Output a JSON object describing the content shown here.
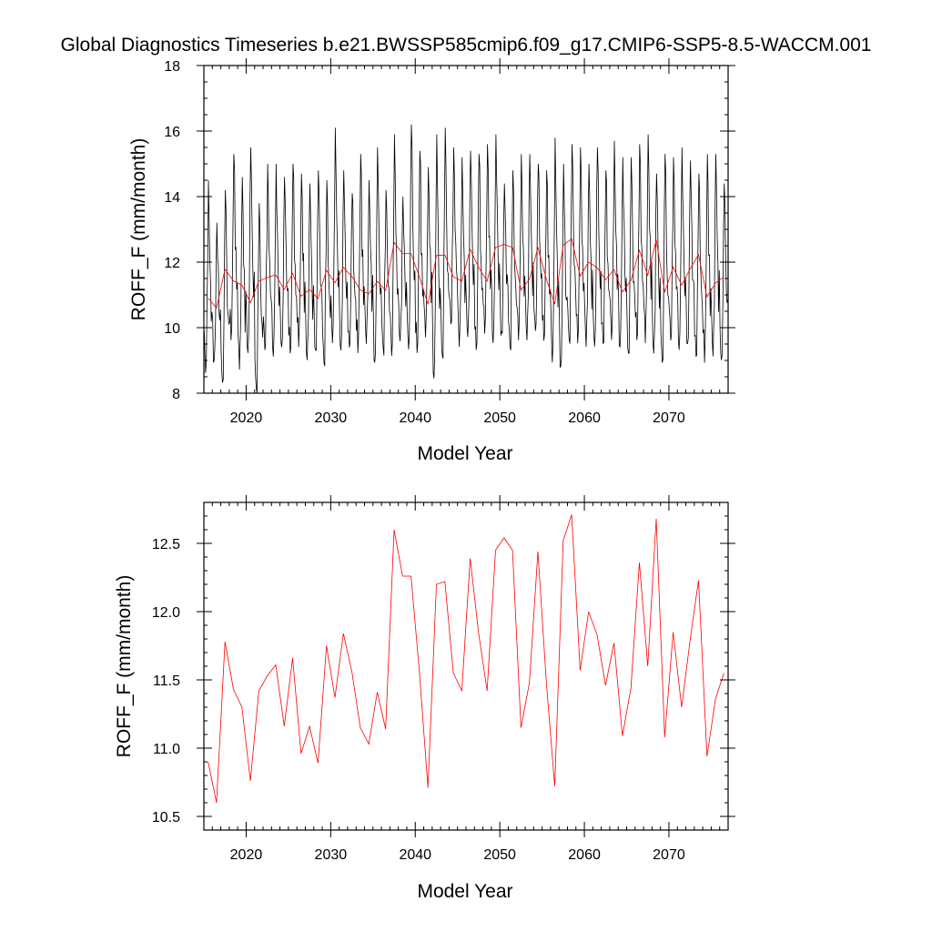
{
  "title": "Global Diagnostics Timeseries b.e21.BWSSP585cmip6.f09_g17.CMIP6-SSP5-8.5-WACCM.001",
  "colors": {
    "monthly": "#000000",
    "annual": "#ff0000",
    "frame": "#000000"
  },
  "chart_data": [
    {
      "type": "line",
      "xlabel": "Model Year",
      "ylabel": "ROFF_F (mm/month)",
      "xlim": [
        2015,
        2077
      ],
      "ylim": [
        8,
        18
      ],
      "x_ticks": [
        2020,
        2030,
        2040,
        2050,
        2060,
        2070
      ],
      "x_tick_labels": [
        "2020",
        "2030",
        "2040",
        "2050",
        "2060",
        "2070"
      ],
      "y_ticks": [
        8,
        10,
        12,
        14,
        16,
        18
      ],
      "y_tick_labels": [
        "8",
        "10",
        "12",
        "14",
        "16",
        "18"
      ],
      "series": [
        {
          "style": "monthly",
          "note_generated_from": "annual",
          "peaks": [
            14.5,
            13.2,
            14.2,
            15.3,
            14.6,
            15.5,
            13.8,
            15.0,
            15.0,
            14.6,
            15.0,
            14.7,
            14.4,
            14.8,
            14.5,
            16.1,
            14.8,
            14.1,
            15.3,
            14.5,
            15.5,
            14.2,
            15.9,
            14.0,
            16.2,
            15.4,
            14.9,
            15.9,
            16.1,
            15.5,
            15.2,
            15.4,
            15.3,
            15.6,
            15.9,
            14.4,
            14.8,
            15.3,
            15.3,
            15.0,
            14.8,
            15.8,
            15.0,
            15.6,
            15.5,
            15.0,
            15.5,
            14.8,
            15.7,
            15.2,
            15.2,
            15.6,
            15.9,
            14.7,
            15.3,
            15.2,
            15.5,
            15.1,
            14.7,
            15.3,
            15.3,
            14.4
          ],
          "troughs": [
            8.5,
            8.9,
            8.2,
            9.5,
            8.6,
            9.1,
            8.0,
            9.2,
            9.0,
            9.3,
            9.1,
            9.3,
            8.9,
            9.2,
            8.8,
            9.4,
            9.2,
            9.3,
            9.1,
            9.4,
            8.8,
            9.3,
            9.0,
            9.5,
            9.2,
            9.1,
            9.6,
            8.3,
            9.0,
            10.0,
            9.3,
            9.6,
            9.2,
            9.7,
            9.4,
            9.8,
            9.3,
            9.5,
            9.5,
            9.8,
            9.5,
            8.8,
            8.7,
            9.5,
            9.4,
            9.3,
            9.3,
            9.4,
            9.5,
            9.3,
            9.1,
            9.5,
            9.4,
            9.1,
            8.8,
            9.5,
            9.2,
            9.4,
            9.0,
            8.8,
            9.0,
            8.9
          ]
        },
        {
          "style": "annual",
          "x": [
            2015.5,
            2016.5,
            2017.5,
            2018.5,
            2019.5,
            2020.5,
            2021.5,
            2022.5,
            2023.5,
            2024.5,
            2025.5,
            2026.5,
            2027.5,
            2028.5,
            2029.5,
            2030.5,
            2031.5,
            2032.5,
            2033.5,
            2034.5,
            2035.5,
            2036.5,
            2037.5,
            2038.5,
            2039.5,
            2040.5,
            2041.5,
            2042.5,
            2043.5,
            2044.5,
            2045.5,
            2046.5,
            2047.5,
            2048.5,
            2049.5,
            2050.5,
            2051.5,
            2052.5,
            2053.5,
            2054.5,
            2055.5,
            2056.5,
            2057.5,
            2058.5,
            2059.5,
            2060.5,
            2061.5,
            2062.5,
            2063.5,
            2064.5,
            2065.5,
            2066.5,
            2067.5,
            2068.5,
            2069.5,
            2070.5,
            2071.5,
            2072.5,
            2073.5,
            2074.5,
            2075.5,
            2076.5
          ],
          "values": [
            10.9,
            10.6,
            11.78,
            11.43,
            11.3,
            10.76,
            11.42,
            11.53,
            11.61,
            11.16,
            11.66,
            10.96,
            11.16,
            10.89,
            11.75,
            11.37,
            11.84,
            11.56,
            11.15,
            11.03,
            11.41,
            11.14,
            12.6,
            12.26,
            12.26,
            11.55,
            10.71,
            12.2,
            12.22,
            11.55,
            11.42,
            12.39,
            11.84,
            11.42,
            12.45,
            12.54,
            12.45,
            11.15,
            11.48,
            12.44,
            11.48,
            10.72,
            12.52,
            12.71,
            11.57,
            12.0,
            11.83,
            11.46,
            11.77,
            11.09,
            11.44,
            12.36,
            11.6,
            12.68,
            11.08,
            11.85,
            11.3,
            11.79,
            12.23,
            10.94,
            11.36,
            11.55
          ]
        }
      ]
    },
    {
      "type": "line",
      "xlabel": "Model Year",
      "ylabel": "ROFF_F (mm/month)",
      "xlim": [
        2015,
        2077
      ],
      "ylim": [
        10.4,
        12.8
      ],
      "x_ticks": [
        2020,
        2030,
        2040,
        2050,
        2060,
        2070
      ],
      "x_tick_labels": [
        "2020",
        "2030",
        "2040",
        "2050",
        "2060",
        "2070"
      ],
      "y_ticks": [
        10.5,
        11.0,
        11.5,
        12.0,
        12.5
      ],
      "y_tick_labels": [
        "10.5",
        "11.0",
        "11.5",
        "12.0",
        "12.5"
      ],
      "series": [
        {
          "style": "annual",
          "x": [
            2015.5,
            2016.5,
            2017.5,
            2018.5,
            2019.5,
            2020.5,
            2021.5,
            2022.5,
            2023.5,
            2024.5,
            2025.5,
            2026.5,
            2027.5,
            2028.5,
            2029.5,
            2030.5,
            2031.5,
            2032.5,
            2033.5,
            2034.5,
            2035.5,
            2036.5,
            2037.5,
            2038.5,
            2039.5,
            2040.5,
            2041.5,
            2042.5,
            2043.5,
            2044.5,
            2045.5,
            2046.5,
            2047.5,
            2048.5,
            2049.5,
            2050.5,
            2051.5,
            2052.5,
            2053.5,
            2054.5,
            2055.5,
            2056.5,
            2057.5,
            2058.5,
            2059.5,
            2060.5,
            2061.5,
            2062.5,
            2063.5,
            2064.5,
            2065.5,
            2066.5,
            2067.5,
            2068.5,
            2069.5,
            2070.5,
            2071.5,
            2072.5,
            2073.5,
            2074.5,
            2075.5,
            2076.5
          ],
          "values": [
            10.9,
            10.6,
            11.78,
            11.43,
            11.3,
            10.76,
            11.42,
            11.53,
            11.61,
            11.16,
            11.66,
            10.96,
            11.16,
            10.89,
            11.75,
            11.37,
            11.84,
            11.56,
            11.15,
            11.03,
            11.41,
            11.14,
            12.6,
            12.26,
            12.26,
            11.55,
            10.71,
            12.2,
            12.22,
            11.55,
            11.42,
            12.39,
            11.84,
            11.42,
            12.45,
            12.54,
            12.45,
            11.15,
            11.48,
            12.44,
            11.48,
            10.72,
            12.52,
            12.71,
            11.57,
            12.0,
            11.83,
            11.46,
            11.77,
            11.09,
            11.44,
            12.36,
            11.6,
            12.68,
            11.08,
            11.85,
            11.3,
            11.79,
            12.23,
            10.94,
            11.36,
            11.55
          ]
        }
      ]
    }
  ]
}
